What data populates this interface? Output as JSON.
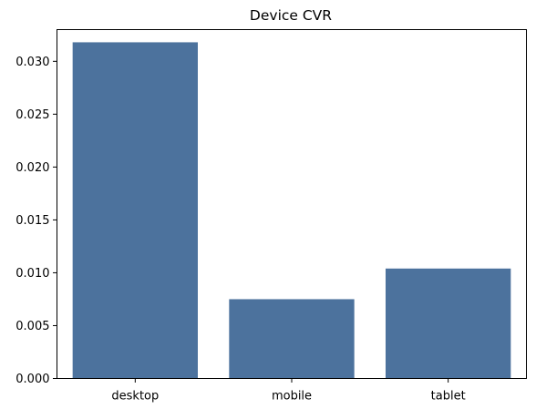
{
  "colors": {
    "bar": "#4c729d",
    "axis": "#000000",
    "background": "#ffffff"
  },
  "chart_data": {
    "type": "bar",
    "title": "Device CVR",
    "xlabel": "",
    "ylabel": "",
    "categories": [
      "desktop",
      "mobile",
      "tablet"
    ],
    "values": [
      0.0318,
      0.0075,
      0.0104
    ],
    "ylim": [
      0,
      0.033
    ],
    "yticks": [
      0.0,
      0.005,
      0.01,
      0.015,
      0.02,
      0.025,
      0.03
    ],
    "ytick_labels": [
      "0.000",
      "0.005",
      "0.010",
      "0.015",
      "0.020",
      "0.025",
      "0.030"
    ],
    "grid": false,
    "legend": "none"
  }
}
